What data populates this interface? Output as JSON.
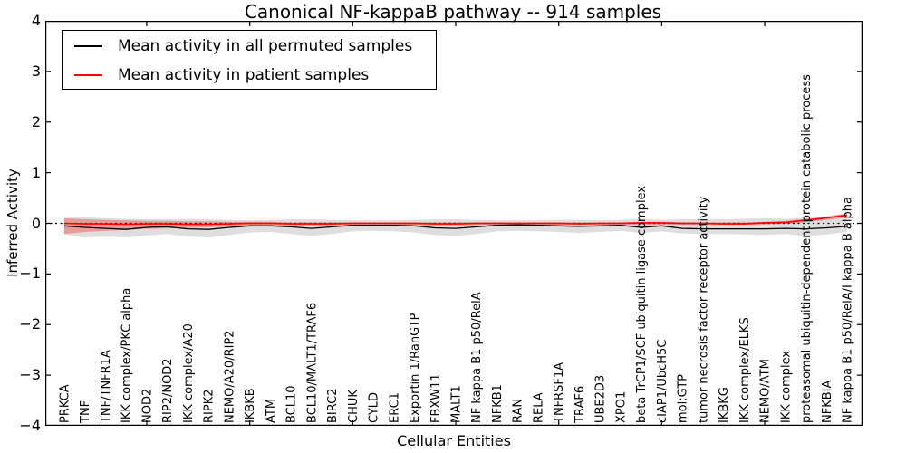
{
  "chart_data": {
    "type": "line",
    "title": "Canonical NF-kappaB pathway -- 914 samples",
    "xlabel": "Cellular Entities",
    "ylabel": "Inferred Activity",
    "ylim": [
      -4,
      4
    ],
    "ytick_labels": [
      "4",
      "3",
      "2",
      "1",
      "0",
      "−1",
      "−2",
      "−3",
      "−4"
    ],
    "ytick_values": [
      4,
      3,
      2,
      1,
      0,
      -1,
      -2,
      -3,
      -4
    ],
    "xtick_major_indices": [
      4,
      9,
      14,
      19,
      24,
      29,
      34
    ],
    "grid": false,
    "legend_position": "upper left",
    "zero_line_style": "dashed",
    "categories": [
      "PRKCA",
      "TNF",
      "TNF/TNFR1A",
      "IKK complex/PKC alpha",
      "NOD2",
      "RIP2/NOD2",
      "IKK complex/A20",
      "RIPK2",
      "NEMO/A20/RIP2",
      "IKBKB",
      "ATM",
      "BCL10",
      "BCL10/MALT1/TRAF6",
      "BIRC2",
      "CHUK",
      "CYLD",
      "ERC1",
      "Exportin 1/RanGTP",
      "FBXW11",
      "MALT1",
      "NF kappa B1 p50/RelA",
      "NFKB1",
      "RAN",
      "RELA",
      "TNFRSF1A",
      "TRAF6",
      "UBE2D3",
      "XPO1",
      "beta TrCP1/SCF ubiquitin ligase complex",
      "cIAP1/UbcH5C",
      "mol:GTP",
      "tumor necrosis factor receptor activity",
      "IKBKG",
      "IKK complex/ELKS",
      "NEMO/ATM",
      "IKK complex",
      "proteasomal ubiquitin-dependent protein catabolic process",
      "NFKBIA",
      "NF kappa B1 p50/RelA/I kappa B alpha"
    ],
    "series": [
      {
        "name": "Mean activity in all permuted samples",
        "color": "#000000",
        "line_width": 1.3,
        "band_color": "rgba(0,0,0,0.13)",
        "values": [
          -0.05,
          -0.08,
          -0.1,
          -0.12,
          -0.08,
          -0.07,
          -0.11,
          -0.12,
          -0.08,
          -0.05,
          -0.05,
          -0.07,
          -0.1,
          -0.07,
          -0.04,
          -0.04,
          -0.04,
          -0.05,
          -0.09,
          -0.1,
          -0.07,
          -0.04,
          -0.03,
          -0.04,
          -0.05,
          -0.06,
          -0.05,
          -0.04,
          -0.08,
          -0.05,
          -0.1,
          -0.11,
          -0.11,
          -0.11,
          -0.11,
          -0.1,
          -0.11,
          -0.09,
          -0.06
        ],
        "band_top": [
          0.11,
          0.12,
          0.1,
          0.09,
          0.08,
          0.08,
          0.09,
          0.08,
          0.07,
          0.06,
          0.07,
          0.08,
          0.08,
          0.07,
          0.06,
          0.06,
          0.06,
          0.07,
          0.08,
          0.08,
          0.07,
          0.06,
          0.06,
          0.06,
          0.07,
          0.07,
          0.06,
          0.07,
          0.09,
          0.07,
          0.08,
          0.08,
          0.08,
          0.09,
          0.1,
          0.09,
          0.11,
          0.1,
          0.09
        ],
        "band_bottom": [
          -0.22,
          -0.28,
          -0.26,
          -0.28,
          -0.24,
          -0.21,
          -0.26,
          -0.28,
          -0.23,
          -0.18,
          -0.17,
          -0.21,
          -0.25,
          -0.21,
          -0.16,
          -0.15,
          -0.16,
          -0.18,
          -0.23,
          -0.25,
          -0.21,
          -0.16,
          -0.15,
          -0.16,
          -0.17,
          -0.19,
          -0.17,
          -0.15,
          -0.19,
          -0.16,
          -0.2,
          -0.21,
          -0.21,
          -0.22,
          -0.23,
          -0.21,
          -0.25,
          -0.22,
          -0.17
        ]
      },
      {
        "name": "Mean activity in patient samples",
        "color": "#ff0000",
        "line_width": 1.6,
        "band_color": "rgba(255,0,0,0.30)",
        "values": [
          0.0,
          -0.01,
          -0.01,
          -0.02,
          -0.01,
          -0.01,
          -0.02,
          -0.02,
          -0.01,
          0.0,
          0.0,
          -0.01,
          -0.01,
          -0.01,
          0.0,
          0.0,
          0.0,
          0.0,
          -0.01,
          -0.01,
          0.0,
          0.0,
          0.0,
          0.0,
          0.0,
          -0.01,
          0.0,
          0.0,
          0.01,
          0.01,
          0.0,
          0.0,
          -0.01,
          -0.01,
          0.01,
          0.02,
          0.06,
          0.11,
          0.16
        ],
        "band_top": [
          0.1,
          0.08,
          0.07,
          0.06,
          0.05,
          0.05,
          0.04,
          0.04,
          0.03,
          0.03,
          0.03,
          0.02,
          0.02,
          0.02,
          0.02,
          0.02,
          0.02,
          0.02,
          0.02,
          0.02,
          0.02,
          0.02,
          0.02,
          0.02,
          0.02,
          0.02,
          0.02,
          0.02,
          0.03,
          0.03,
          0.02,
          0.02,
          0.02,
          0.02,
          0.03,
          0.05,
          0.09,
          0.14,
          0.2
        ],
        "band_bottom": [
          -0.21,
          -0.17,
          -0.15,
          -0.13,
          -0.11,
          -0.1,
          -0.09,
          -0.08,
          -0.06,
          -0.05,
          -0.05,
          -0.04,
          -0.04,
          -0.04,
          -0.03,
          -0.03,
          -0.03,
          -0.03,
          -0.04,
          -0.04,
          -0.03,
          -0.03,
          -0.03,
          -0.03,
          -0.03,
          -0.03,
          -0.03,
          -0.03,
          -0.03,
          -0.03,
          -0.03,
          -0.03,
          -0.03,
          -0.03,
          -0.02,
          -0.01,
          0.02,
          0.07,
          0.11
        ]
      }
    ]
  }
}
